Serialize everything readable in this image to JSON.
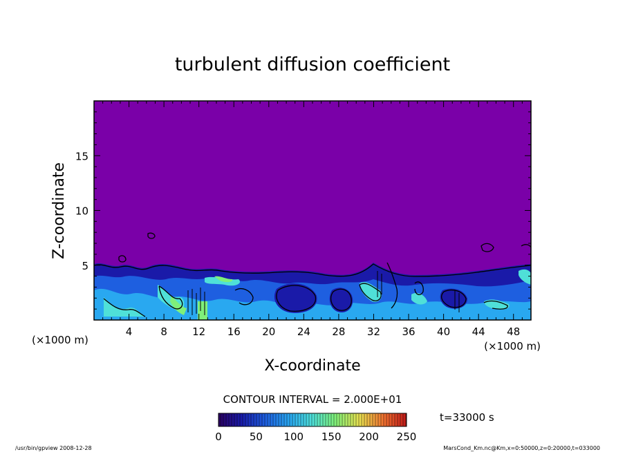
{
  "chart_data": {
    "type": "heatmap",
    "title": "turbulent diffusion coefficient",
    "xlabel": "X-coordinate",
    "ylabel": "Z-coordinate",
    "x_unit_left": "(×1000 m)",
    "x_unit_right": "(×1000 m)",
    "xlim": [
      0,
      50
    ],
    "ylim": [
      0,
      20
    ],
    "x_ticks": [
      "4",
      "8",
      "12",
      "16",
      "20",
      "24",
      "28",
      "32",
      "36",
      "40",
      "44",
      "48"
    ],
    "y_ticks": [
      "5",
      "10",
      "15"
    ],
    "contour_interval_text": "CONTOUR INTERVAL = 2.000E+01",
    "time_label": "t=33000 s",
    "colorbar": {
      "ticks": [
        "0",
        "50",
        "100",
        "150",
        "200",
        "250"
      ],
      "range": [
        0,
        250
      ],
      "colors": [
        "#2a0060",
        "#1a1aa8",
        "#1e5fe0",
        "#29a8f0",
        "#4fe0d8",
        "#7ff07a",
        "#e8e050",
        "#f07030",
        "#c01818"
      ]
    },
    "background_color": "#7a00a8",
    "boundary_layer_top_km": 4.5,
    "footer_left": "/usr/bin/gpview   2008-12-28",
    "footer_right": "MarsCond_Km.nc@Km,x=0:50000,z=0:20000,t=033000"
  }
}
